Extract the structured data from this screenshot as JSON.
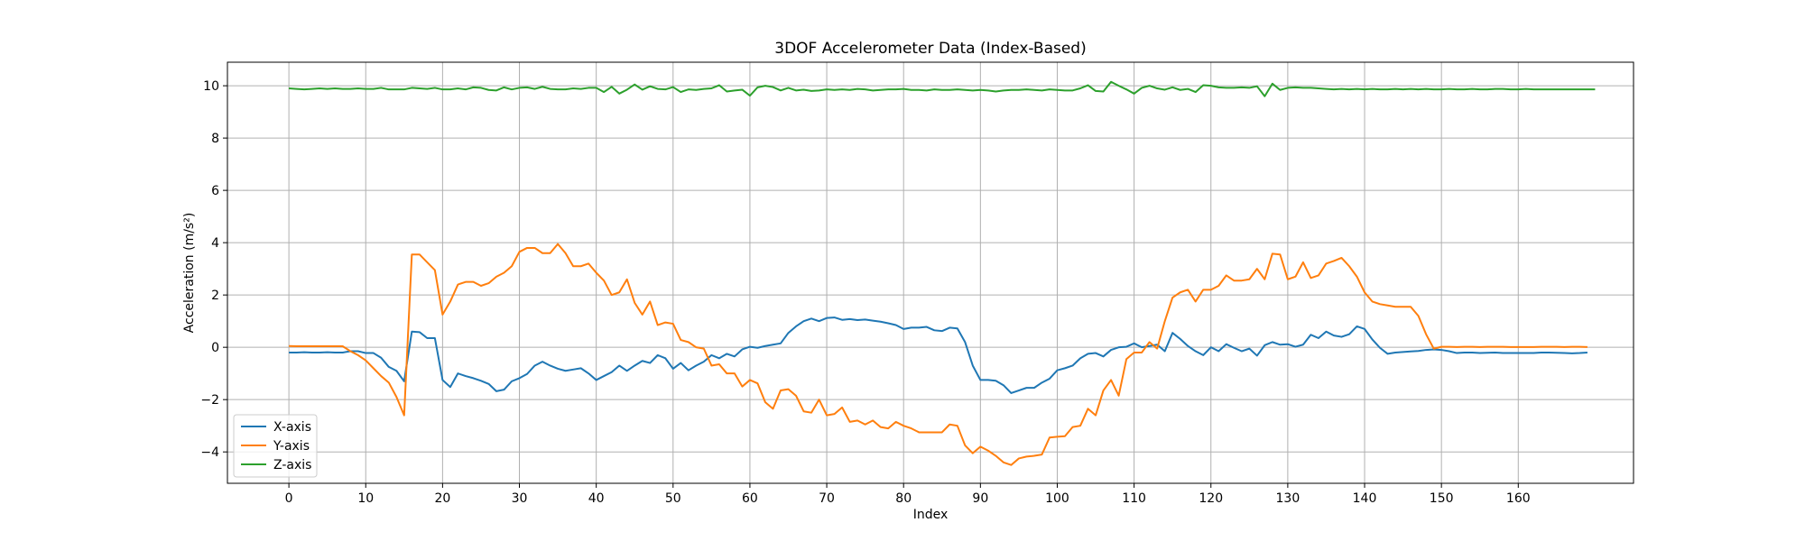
{
  "chart_data": {
    "type": "line",
    "title": "3DOF Accelerometer Data (Index-Based)",
    "xlabel": "Index",
    "ylabel": "Acceleration (m/s²)",
    "xlim": [
      -8,
      175
    ],
    "ylim": [
      -5.2,
      10.9
    ],
    "xticks": [
      0,
      10,
      20,
      30,
      40,
      50,
      60,
      70,
      80,
      90,
      100,
      110,
      120,
      130,
      140,
      150,
      160
    ],
    "yticks": [
      -4,
      -2,
      0,
      2,
      4,
      6,
      8,
      10
    ],
    "grid": true,
    "legend_position": "lower-left",
    "x_start": 0,
    "x_step": 1,
    "series": [
      {
        "name": "X-axis",
        "color": "#1f77b4",
        "values": [
          -0.2,
          -0.2,
          -0.19,
          -0.2,
          -0.2,
          -0.19,
          -0.2,
          -0.2,
          -0.15,
          -0.15,
          -0.22,
          -0.22,
          -0.4,
          -0.75,
          -0.9,
          -1.3,
          0.6,
          0.58,
          0.35,
          0.35,
          -1.25,
          -1.52,
          -1.0,
          -1.1,
          -1.18,
          -1.28,
          -1.4,
          -1.68,
          -1.62,
          -1.3,
          -1.18,
          -1.02,
          -0.7,
          -0.55,
          -0.7,
          -0.82,
          -0.9,
          -0.85,
          -0.8,
          -1.0,
          -1.25,
          -1.1,
          -0.95,
          -0.7,
          -0.9,
          -0.7,
          -0.52,
          -0.6,
          -0.3,
          -0.42,
          -0.82,
          -0.6,
          -0.88,
          -0.7,
          -0.55,
          -0.3,
          -0.42,
          -0.25,
          -0.35,
          -0.08,
          0.02,
          -0.02,
          0.05,
          0.1,
          0.15,
          0.55,
          0.8,
          1.0,
          1.1,
          1.0,
          1.12,
          1.14,
          1.05,
          1.08,
          1.04,
          1.06,
          1.02,
          0.98,
          0.92,
          0.85,
          0.7,
          0.75,
          0.75,
          0.78,
          0.65,
          0.62,
          0.75,
          0.72,
          0.2,
          -0.7,
          -1.25,
          -1.25,
          -1.28,
          -1.45,
          -1.75,
          -1.65,
          -1.55,
          -1.55,
          -1.35,
          -1.2,
          -0.88,
          -0.8,
          -0.7,
          -0.42,
          -0.25,
          -0.22,
          -0.35,
          -0.1,
          0.0,
          0.02,
          0.15,
          0.0,
          0.05,
          0.1,
          -0.15,
          0.55,
          0.32,
          0.05,
          -0.15,
          -0.3,
          0.0,
          -0.15,
          0.12,
          -0.02,
          -0.15,
          -0.05,
          -0.32,
          0.08,
          0.2,
          0.1,
          0.12,
          0.02,
          0.1,
          0.48,
          0.35,
          0.6,
          0.45,
          0.4,
          0.5,
          0.8,
          0.7,
          0.3,
          -0.02,
          -0.25,
          -0.2,
          -0.18,
          -0.16,
          -0.14,
          -0.1,
          -0.08,
          -0.1,
          -0.15,
          -0.22,
          -0.2,
          -0.2,
          -0.22,
          -0.21,
          -0.2,
          -0.22,
          -0.22,
          -0.22,
          -0.22,
          -0.22,
          -0.2,
          -0.2,
          -0.21,
          -0.22,
          -0.23,
          -0.22,
          -0.2
        ]
      },
      {
        "name": "Y-axis",
        "color": "#ff7f0e",
        "values": [
          0.05,
          0.04,
          0.04,
          0.04,
          0.04,
          0.04,
          0.04,
          0.04,
          -0.15,
          -0.3,
          -0.5,
          -0.8,
          -1.1,
          -1.35,
          -1.9,
          -2.6,
          3.55,
          3.55,
          3.25,
          2.95,
          1.25,
          1.75,
          2.4,
          2.5,
          2.5,
          2.35,
          2.45,
          2.7,
          2.85,
          3.1,
          3.65,
          3.8,
          3.8,
          3.6,
          3.6,
          3.95,
          3.6,
          3.1,
          3.1,
          3.2,
          2.85,
          2.55,
          2.0,
          2.1,
          2.6,
          1.7,
          1.25,
          1.75,
          0.85,
          0.95,
          0.9,
          0.28,
          0.2,
          0.0,
          -0.05,
          -0.7,
          -0.65,
          -1.0,
          -1.0,
          -1.5,
          -1.25,
          -1.38,
          -2.1,
          -2.35,
          -1.65,
          -1.6,
          -1.85,
          -2.45,
          -2.5,
          -2.0,
          -2.6,
          -2.55,
          -2.3,
          -2.85,
          -2.8,
          -2.95,
          -2.8,
          -3.05,
          -3.1,
          -2.85,
          -3.0,
          -3.1,
          -3.25,
          -3.25,
          -3.25,
          -3.25,
          -2.95,
          -3.0,
          -3.75,
          -4.05,
          -3.8,
          -3.95,
          -4.15,
          -4.4,
          -4.5,
          -4.25,
          -4.18,
          -4.15,
          -4.1,
          -3.45,
          -3.42,
          -3.4,
          -3.05,
          -3.0,
          -2.35,
          -2.6,
          -1.65,
          -1.25,
          -1.85,
          -0.45,
          -0.2,
          -0.2,
          0.2,
          -0.05,
          1.0,
          1.9,
          2.1,
          2.2,
          1.75,
          2.2,
          2.2,
          2.35,
          2.75,
          2.55,
          2.55,
          2.6,
          3.0,
          2.6,
          3.58,
          3.55,
          2.6,
          2.7,
          3.25,
          2.65,
          2.75,
          3.2,
          3.3,
          3.42,
          3.1,
          2.7,
          2.1,
          1.75,
          1.65,
          1.6,
          1.55,
          1.55,
          1.55,
          1.2,
          0.5,
          -0.05,
          0.02,
          0.02,
          0.01,
          0.02,
          0.02,
          0.01,
          0.02,
          0.02,
          0.02,
          0.01,
          0.01,
          0.01,
          0.01,
          0.02,
          0.02,
          0.02,
          0.01,
          0.02,
          0.02,
          0.01
        ]
      },
      {
        "name": "Z-axis",
        "color": "#2ca02c",
        "values": [
          9.9,
          9.88,
          9.86,
          9.88,
          9.9,
          9.88,
          9.9,
          9.88,
          9.88,
          9.9,
          9.88,
          9.88,
          9.92,
          9.86,
          9.86,
          9.86,
          9.92,
          9.9,
          9.88,
          9.92,
          9.86,
          9.86,
          9.9,
          9.86,
          9.94,
          9.92,
          9.84,
          9.82,
          9.94,
          9.86,
          9.92,
          9.94,
          9.88,
          9.96,
          9.88,
          9.86,
          9.86,
          9.9,
          9.88,
          9.92,
          9.92,
          9.76,
          9.96,
          9.7,
          9.85,
          10.05,
          9.85,
          9.98,
          9.88,
          9.86,
          9.95,
          9.76,
          9.86,
          9.84,
          9.88,
          9.9,
          10.02,
          9.78,
          9.82,
          9.85,
          9.62,
          9.94,
          10.0,
          9.95,
          9.82,
          9.92,
          9.82,
          9.85,
          9.8,
          9.82,
          9.86,
          9.84,
          9.86,
          9.84,
          9.88,
          9.86,
          9.82,
          9.84,
          9.86,
          9.86,
          9.88,
          9.84,
          9.84,
          9.82,
          9.86,
          9.84,
          9.84,
          9.86,
          9.84,
          9.82,
          9.84,
          9.82,
          9.78,
          9.82,
          9.84,
          9.84,
          9.86,
          9.84,
          9.82,
          9.86,
          9.84,
          9.82,
          9.82,
          9.9,
          10.02,
          9.8,
          9.78,
          10.15,
          10.0,
          9.86,
          9.7,
          9.92,
          10.0,
          9.9,
          9.85,
          9.94,
          9.84,
          9.88,
          9.76,
          10.02,
          10.0,
          9.94,
          9.92,
          9.92,
          9.94,
          9.92,
          9.98,
          9.6,
          10.08,
          9.84,
          9.92,
          9.94,
          9.92,
          9.92,
          9.9,
          9.88,
          9.86,
          9.88,
          9.86,
          9.88,
          9.86,
          9.88,
          9.86,
          9.86,
          9.88,
          9.86,
          9.88,
          9.86,
          9.88,
          9.86,
          9.86,
          9.88,
          9.86,
          9.86,
          9.88,
          9.86,
          9.86,
          9.88,
          9.88,
          9.86,
          9.86,
          9.88,
          9.86,
          9.86,
          9.86,
          9.86,
          9.86,
          9.86,
          9.86,
          9.86,
          9.86
        ]
      }
    ]
  }
}
